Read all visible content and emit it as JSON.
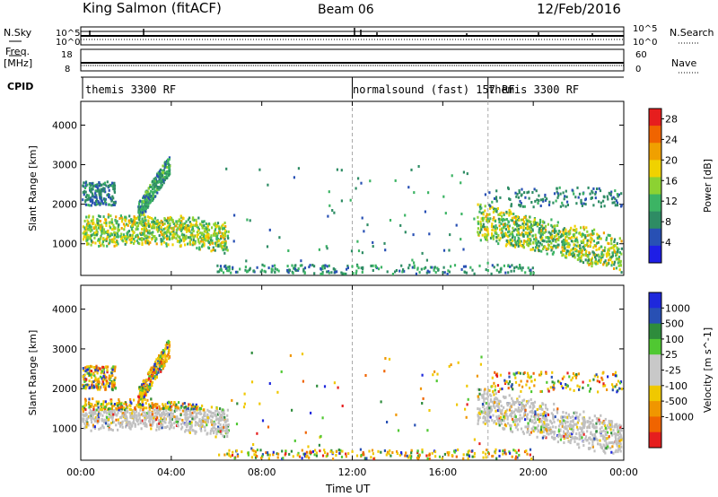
{
  "header": {
    "site": "King Salmon (fitACF)",
    "beam": "Beam 06",
    "date": "12/Feb/2016"
  },
  "strips": {
    "nsky_label": "N.Sky",
    "nsearch_label": "N.Search",
    "noise_ticks_left": [
      "10^5",
      "10^0"
    ],
    "noise_ticks_right": [
      "10^5",
      "10^0"
    ],
    "freq_label": "Freq.",
    "freq_unit": "[MHz]",
    "freq_ticks": [
      "18",
      "8"
    ],
    "nave_label": "Nave",
    "nave_ticks": [
      "60",
      "0"
    ],
    "cpid_label": "CPID",
    "cpid_segments": [
      {
        "label": "themis 3300 RF",
        "start_hour": 0
      },
      {
        "label": "normalsound (fast) 157 RF",
        "start_hour": 12
      },
      {
        "label": "themis 3300 RF",
        "start_hour": 18
      }
    ]
  },
  "colors": {
    "power_scale": [
      "#1e1ee6",
      "#2850b4",
      "#2e8c64",
      "#3cb464",
      "#8cd232",
      "#f0d200",
      "#f0a000",
      "#f06400",
      "#e61e1e"
    ],
    "velocity_scale": [
      "#1e28dc",
      "#2850b4",
      "#2e8c3c",
      "#50c832",
      "#c8c8c8",
      "#c8c8c8",
      "#f0c800",
      "#f09600",
      "#f06400",
      "#e61e1e"
    ],
    "ground_scatter": "#c0c0c0"
  },
  "chart_data": [
    {
      "type": "heatmap",
      "name": "power-panel",
      "ylabel": "Slant Range [km]",
      "xlabel": "",
      "xlim_hours": [
        0,
        24
      ],
      "ylim": [
        200,
        4600
      ],
      "x_ticks": [
        "00:00",
        "04:00",
        "08:00",
        "12:00",
        "16:00",
        "20:00",
        "00:00"
      ],
      "y_ticks": [
        1000,
        2000,
        3000,
        4000
      ],
      "colorbar": {
        "label": "Power [dB]",
        "ticks": [
          "4",
          "8",
          "12",
          "16",
          "20",
          "24",
          "28"
        ],
        "range": [
          0,
          30
        ]
      },
      "features": [
        {
          "region": "morning echo band",
          "hours": [
            0,
            6.5
          ],
          "range_km": [
            1000,
            1800
          ],
          "power_db": 14
        },
        {
          "region": "rising arc",
          "hours": [
            2.5,
            3.8
          ],
          "range_km": [
            1800,
            3300
          ],
          "power_db": 8
        },
        {
          "region": "evening band",
          "hours": [
            17.5,
            24
          ],
          "range_km": [
            1000,
            2000
          ],
          "power_db": 16
        },
        {
          "region": "near-range clutter",
          "hours": [
            6,
            20
          ],
          "range_km": [
            250,
            500
          ],
          "power_db": 6
        }
      ]
    },
    {
      "type": "heatmap",
      "name": "velocity-panel",
      "ylabel": "Slant Range [km]",
      "xlabel": "Time UT",
      "xlim_hours": [
        0,
        24
      ],
      "ylim": [
        200,
        4600
      ],
      "x_ticks": [
        "00:00",
        "04:00",
        "08:00",
        "12:00",
        "16:00",
        "20:00",
        "00:00"
      ],
      "y_ticks": [
        1000,
        2000,
        3000,
        4000
      ],
      "colorbar": {
        "label": "Velocity [m s^-1]",
        "ticks": [
          "1000",
          "500",
          "100",
          "25",
          "-25",
          "-100",
          "-500",
          "-1000"
        ]
      },
      "features": [
        {
          "region": "morning band",
          "hours": [
            0,
            6.5
          ],
          "range_km": [
            1000,
            1800
          ],
          "velocity": 0
        },
        {
          "region": "rising arc",
          "hours": [
            2.5,
            3.8
          ],
          "range_km": [
            1800,
            3300
          ],
          "velocity": -100
        },
        {
          "region": "evening band",
          "hours": [
            17.5,
            24
          ],
          "range_km": [
            1000,
            2000
          ],
          "velocity": 0
        },
        {
          "region": "near-range clutter",
          "hours": [
            6,
            20
          ],
          "range_km": [
            250,
            500
          ],
          "velocity": -100
        }
      ]
    }
  ],
  "xaxis": {
    "title": "Time UT",
    "ticks": [
      "00:00",
      "04:00",
      "08:00",
      "12:00",
      "16:00",
      "20:00",
      "00:00"
    ]
  }
}
